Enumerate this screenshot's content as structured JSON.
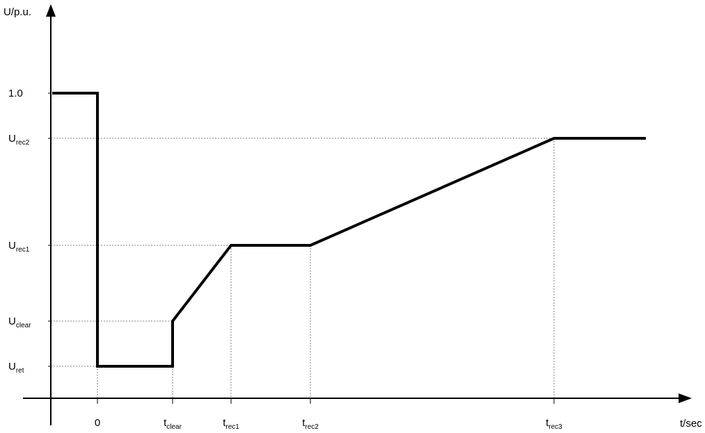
{
  "chart_data": {
    "type": "line",
    "title": "",
    "y_axis_label": "U/p.u.",
    "x_axis_label": "t/sec",
    "y_levels": [
      {
        "key": "u_ret",
        "base": "U",
        "sub": "ret"
      },
      {
        "key": "u_clear",
        "base": "U",
        "sub": "clear"
      },
      {
        "key": "u_rec1",
        "base": "U",
        "sub": "rec1"
      },
      {
        "key": "u_rec2",
        "base": "U",
        "sub": "rec2"
      },
      {
        "key": "u_nom",
        "base": "1.0",
        "sub": ""
      }
    ],
    "x_points": [
      {
        "key": "t0",
        "base": "0",
        "sub": ""
      },
      {
        "key": "t_clear",
        "base": "t",
        "sub": "clear"
      },
      {
        "key": "t_rec1",
        "base": "t",
        "sub": "rec1"
      },
      {
        "key": "t_rec2",
        "base": "t",
        "sub": "rec2"
      },
      {
        "key": "t_rec3",
        "base": "t",
        "sub": "rec3"
      }
    ],
    "curve": [
      {
        "x": "start",
        "y": "u_nom"
      },
      {
        "x": "t0",
        "y": "u_nom"
      },
      {
        "x": "t0",
        "y": "u_ret"
      },
      {
        "x": "t_clear",
        "y": "u_ret"
      },
      {
        "x": "t_clear",
        "y": "u_clear"
      },
      {
        "x": "t_rec1",
        "y": "u_rec1"
      },
      {
        "x": "t_rec2",
        "y": "u_rec1"
      },
      {
        "x": "t_rec3",
        "y": "u_rec2"
      },
      {
        "x": "end",
        "y": "u_rec2"
      }
    ],
    "grid": false
  }
}
